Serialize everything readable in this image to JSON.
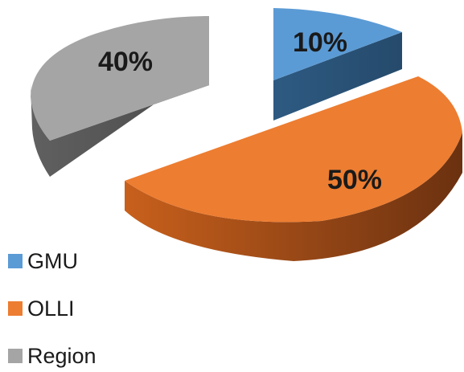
{
  "chart_data": {
    "type": "pie",
    "title": "",
    "slices": [
      {
        "name": "GMU",
        "value": 10,
        "label": "10%",
        "color": "#5b9bd5"
      },
      {
        "name": "OLLI",
        "value": 50,
        "label": "50%",
        "color": "#ed7d31"
      },
      {
        "name": "Region",
        "value": 40,
        "label": "40%",
        "color": "#a5a5a5"
      }
    ],
    "legend_position": "bottom-left"
  }
}
